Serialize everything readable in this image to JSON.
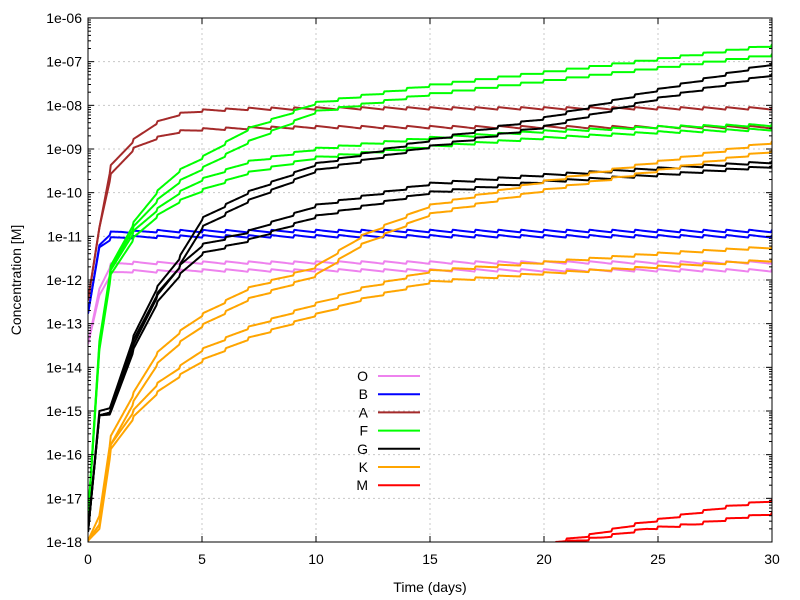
{
  "chart_data": {
    "type": "line",
    "title": "",
    "xlabel": "Time (days)",
    "ylabel": "Concentration [M]",
    "xlim": [
      0,
      30
    ],
    "ylim_log10": [
      -18,
      -6
    ],
    "yscale": "log",
    "grid": true,
    "legend_position": "center-bottom",
    "x_ticks": [
      0,
      5,
      10,
      15,
      20,
      25,
      30
    ],
    "x_tick_labels": [
      "0",
      "5",
      "10",
      "15",
      "20",
      "25",
      "30"
    ],
    "y_ticks_log10": [
      -18,
      -17,
      -16,
      -15,
      -14,
      -13,
      -12,
      -11,
      -10,
      -9,
      -8,
      -7,
      -6
    ],
    "y_tick_labels": [
      "1e-18",
      "1e-17",
      "1e-16",
      "1e-15",
      "1e-14",
      "1e-13",
      "1e-12",
      "1e-11",
      "1e-10",
      "1e-09",
      "1e-08",
      "1e-07",
      "1e-06"
    ],
    "series": [
      {
        "name": "O",
        "color": "#ee82ee",
        "curves": [
          {
            "x": [
              0,
              0.5,
              1,
              1.5,
              2,
              3,
              5,
              10,
              20,
              30
            ],
            "log10y": [
              -13.5,
              -12.2,
              -11.65,
              -11.62,
              -11.61,
              -11.61,
              -11.6,
              -11.6,
              -11.6,
              -11.6
            ]
          },
          {
            "x": [
              0,
              0.5,
              1,
              1.5,
              2,
              3,
              5,
              10,
              20,
              30
            ],
            "log10y": [
              -13.5,
              -12.35,
              -11.85,
              -11.82,
              -11.8,
              -11.8,
              -11.78,
              -11.78,
              -11.78,
              -11.78
            ]
          }
        ]
      },
      {
        "name": "B",
        "color": "#0000ff",
        "curves": [
          {
            "x": [
              0,
              0.5,
              1,
              1.5,
              2,
              3,
              5,
              10,
              20,
              30
            ],
            "log10y": [
              -12.8,
              -11.2,
              -10.92,
              -10.9,
              -10.9,
              -10.88,
              -10.88,
              -10.88,
              -10.88,
              -10.88
            ]
          },
          {
            "x": [
              0,
              0.5,
              1,
              1.5,
              2,
              3,
              5,
              10,
              20,
              30
            ],
            "log10y": [
              -12.8,
              -11.25,
              -11.05,
              -11.03,
              -11.02,
              -11.01,
              -11.0,
              -11.0,
              -11.0,
              -11.0
            ]
          }
        ]
      },
      {
        "name": "A",
        "color": "#a52a2a",
        "curves": [
          {
            "x": [
              0,
              0.5,
              1,
              2,
              3,
              4,
              5,
              7,
              10,
              15,
              20,
              30
            ],
            "log10y": [
              -12.5,
              -10.8,
              -9.4,
              -8.8,
              -8.4,
              -8.2,
              -8.12,
              -8.08,
              -8.07,
              -8.07,
              -8.07,
              -8.07
            ]
          },
          {
            "x": [
              0,
              0.5,
              1,
              2,
              3,
              4,
              5,
              7,
              10,
              15,
              20,
              30
            ],
            "log10y": [
              -12.5,
              -10.8,
              -9.6,
              -9.0,
              -8.75,
              -8.6,
              -8.55,
              -8.52,
              -8.5,
              -8.5,
              -8.5,
              -8.5
            ]
          }
        ]
      },
      {
        "name": "F",
        "color": "#00ff00",
        "curves": [
          {
            "x": [
              0,
              0.5,
              1,
              2,
              3,
              4,
              5,
              7,
              10,
              15,
              20,
              25,
              30
            ],
            "log10y": [
              -17.5,
              -13.4,
              -11.7,
              -10.7,
              -10.0,
              -9.5,
              -9.2,
              -8.55,
              -7.95,
              -7.55,
              -7.25,
              -6.95,
              -6.63
            ]
          },
          {
            "x": [
              0,
              0.5,
              1,
              2,
              3,
              4,
              5,
              7,
              10,
              15,
              20,
              25,
              30
            ],
            "log10y": [
              -17.5,
              -13.5,
              -11.75,
              -10.8,
              -10.2,
              -9.75,
              -9.45,
              -8.85,
              -8.15,
              -7.75,
              -7.45,
              -7.15,
              -6.85
            ]
          },
          {
            "x": [
              0,
              0.5,
              1,
              2,
              3,
              4,
              5,
              7,
              10,
              15,
              20,
              25,
              30
            ],
            "log10y": [
              -17.5,
              -13.5,
              -11.8,
              -10.9,
              -10.4,
              -10.0,
              -9.7,
              -9.3,
              -9.0,
              -8.75,
              -8.6,
              -8.5,
              -8.45
            ]
          },
          {
            "x": [
              0,
              0.5,
              1,
              2,
              3,
              4,
              5,
              7,
              10,
              15,
              20,
              25,
              30
            ],
            "log10y": [
              -17.5,
              -13.6,
              -11.9,
              -11.05,
              -10.55,
              -10.2,
              -9.95,
              -9.55,
              -9.2,
              -8.95,
              -8.75,
              -8.62,
              -8.55
            ]
          }
        ]
      },
      {
        "name": "G",
        "color": "#000000",
        "curves": [
          {
            "x": [
              0,
              0.5,
              1,
              2,
              3,
              4,
              5,
              7,
              10,
              15,
              20,
              25,
              30
            ],
            "log10y": [
              -17.8,
              -15.0,
              -14.9,
              -13.3,
              -12.2,
              -11.5,
              -10.6,
              -10.0,
              -9.35,
              -8.8,
              -8.3,
              -7.65,
              -7.05
            ]
          },
          {
            "x": [
              0,
              0.5,
              1,
              2,
              3,
              4,
              5,
              7,
              10,
              15,
              20,
              25,
              30
            ],
            "log10y": [
              -17.8,
              -15.1,
              -15.0,
              -13.4,
              -12.35,
              -11.7,
              -10.8,
              -10.2,
              -9.5,
              -8.95,
              -8.5,
              -7.85,
              -7.3
            ]
          },
          {
            "x": [
              0,
              0.5,
              1,
              2,
              3,
              4,
              5,
              7,
              10,
              15,
              20,
              25,
              30
            ],
            "log10y": [
              -17.8,
              -15.1,
              -15.0,
              -13.5,
              -12.4,
              -11.7,
              -11.2,
              -10.9,
              -10.3,
              -9.8,
              -9.6,
              -9.45,
              -9.3
            ]
          },
          {
            "x": [
              0,
              0.5,
              1,
              2,
              3,
              4,
              5,
              7,
              10,
              15,
              20,
              25,
              30
            ],
            "log10y": [
              -17.8,
              -15.1,
              -15.05,
              -13.6,
              -12.55,
              -11.9,
              -11.4,
              -11.1,
              -10.55,
              -10.0,
              -9.75,
              -9.6,
              -9.4
            ]
          }
        ]
      },
      {
        "name": "K",
        "color": "#ffa500",
        "curves": [
          {
            "x": [
              0,
              0.5,
              1,
              2,
              3,
              4,
              5,
              7,
              10,
              12,
              15,
              20,
              25,
              30
            ],
            "log10y": [
              -18,
              -17.4,
              -15.6,
              -14.6,
              -13.7,
              -13.2,
              -12.8,
              -12.2,
              -11.7,
              -11.0,
              -10.3,
              -9.75,
              -9.3,
              -8.85
            ]
          },
          {
            "x": [
              0,
              0.5,
              1,
              2,
              3,
              4,
              5,
              7,
              10,
              12,
              15,
              20,
              25,
              30
            ],
            "log10y": [
              -18,
              -17.6,
              -15.8,
              -14.8,
              -13.95,
              -13.45,
              -13.05,
              -12.45,
              -11.9,
              -11.2,
              -10.5,
              -9.95,
              -9.5,
              -9.05
            ]
          },
          {
            "x": [
              0,
              0.5,
              1,
              2,
              3,
              4,
              5,
              7,
              10,
              12,
              15,
              20,
              25,
              30
            ],
            "log10y": [
              -18,
              -17.6,
              -15.8,
              -15.0,
              -14.4,
              -14.0,
              -13.6,
              -13.1,
              -12.55,
              -12.2,
              -11.8,
              -11.6,
              -11.4,
              -11.25
            ]
          },
          {
            "x": [
              0,
              0.5,
              1,
              2,
              3,
              4,
              5,
              7,
              10,
              12,
              15,
              20,
              25,
              30
            ],
            "log10y": [
              -18,
              -17.7,
              -15.9,
              -15.15,
              -14.6,
              -14.2,
              -13.85,
              -13.35,
              -12.8,
              -12.45,
              -12.05,
              -11.85,
              -11.7,
              -11.55
            ]
          }
        ]
      },
      {
        "name": "M",
        "color": "#ff0000",
        "curves": [
          {
            "x": [
              20.5,
              22,
              24,
              26,
              28,
              30
            ],
            "log10y": [
              -18.0,
              -17.85,
              -17.6,
              -17.4,
              -17.2,
              -17.05
            ]
          },
          {
            "x": [
              21,
              22.5,
              24.5,
              26.5,
              28.5,
              30
            ],
            "log10y": [
              -18.0,
              -17.9,
              -17.7,
              -17.6,
              -17.45,
              -17.35
            ]
          }
        ]
      }
    ]
  }
}
